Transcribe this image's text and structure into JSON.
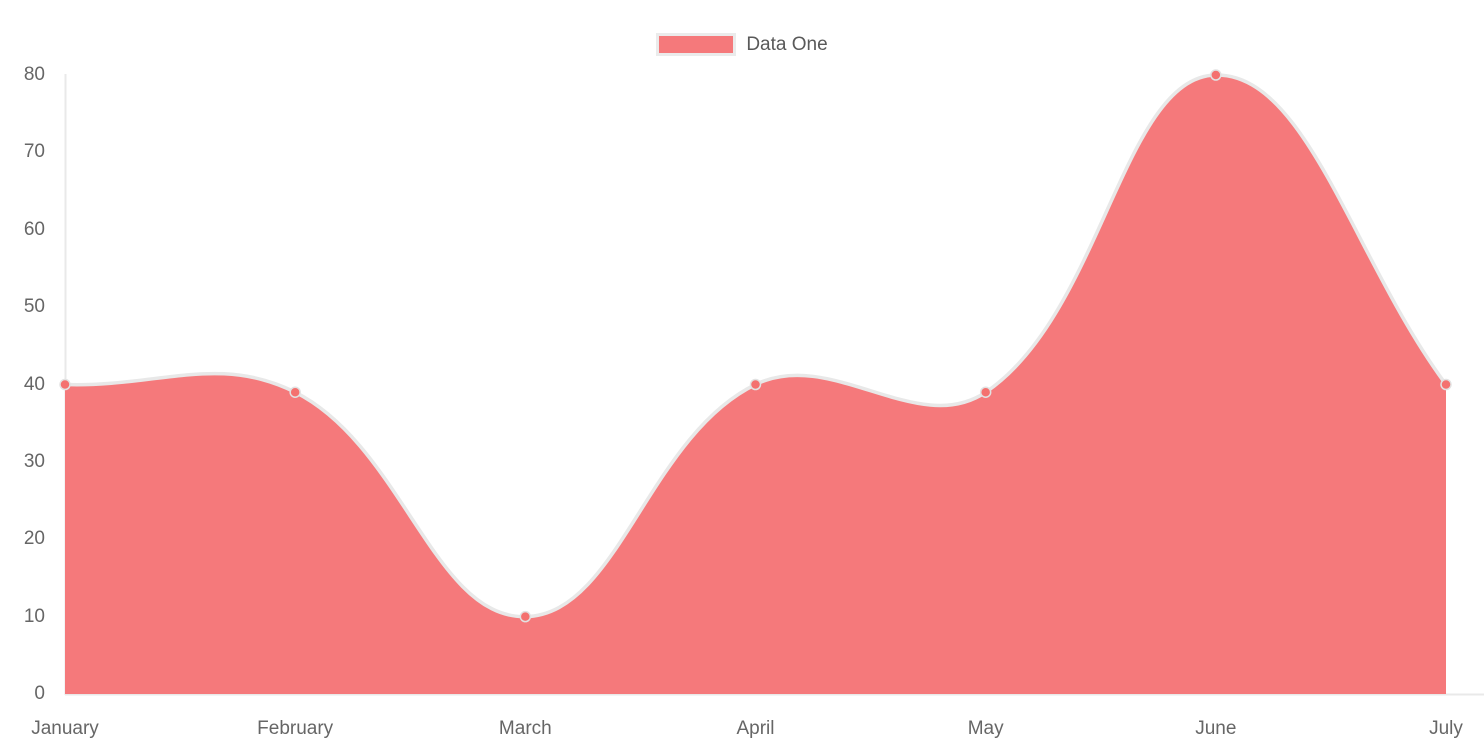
{
  "chart_data": {
    "type": "area",
    "categories": [
      "January",
      "February",
      "March",
      "April",
      "May",
      "June",
      "July"
    ],
    "series": [
      {
        "name": "Data One",
        "values": [
          40,
          39,
          10,
          40,
          39,
          80,
          40
        ]
      }
    ],
    "y_ticks": [
      80,
      70,
      60,
      50,
      40,
      30,
      20,
      10,
      0
    ],
    "ylim": [
      0,
      80
    ],
    "xlabel": "",
    "ylabel": "",
    "title": "",
    "grid": false,
    "legend_position": "top",
    "line_tension": 0.4,
    "point_radius": 5,
    "line_width": 3.5,
    "colors": {
      "fill": "#f5797b",
      "line": "#e8e8e8",
      "point_fill": "#f4716f",
      "point_border": "#e2e2e2",
      "axis": "#e9e9e9",
      "tick_text": "#666666",
      "legend_text": "#595959",
      "legend_border": "#ebebeb",
      "background": "#ffffff"
    }
  },
  "legend": {
    "label": "Data One"
  }
}
